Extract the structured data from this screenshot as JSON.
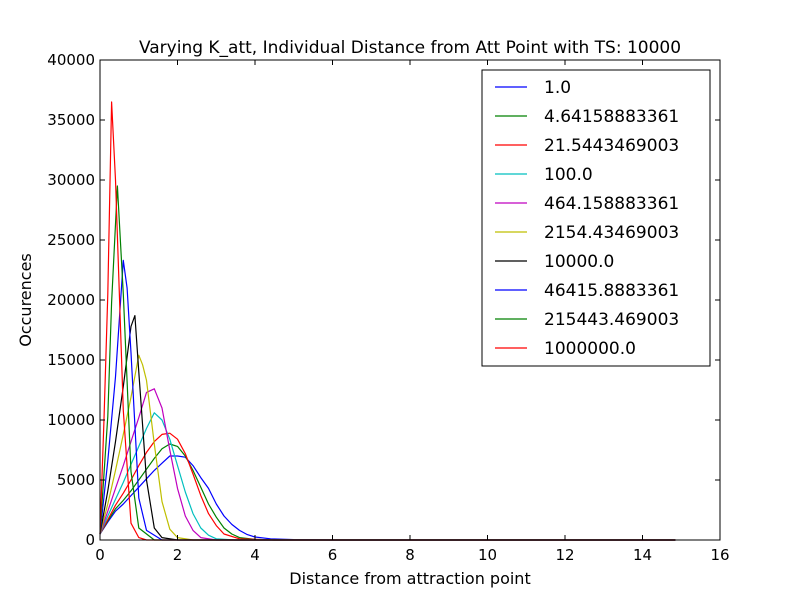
{
  "chart_data": {
    "type": "line",
    "title": "Varying K_att, Individual Distance from Att Point with TS: 10000",
    "xlabel": "Distance from attraction point",
    "ylabel": "Occurences",
    "xlim": [
      0,
      16
    ],
    "ylim": [
      0,
      40000
    ],
    "xticks": [
      "0",
      "2",
      "4",
      "6",
      "8",
      "10",
      "12",
      "14",
      "16"
    ],
    "yticks": [
      "0",
      "5000",
      "10000",
      "15000",
      "20000",
      "25000",
      "30000",
      "35000",
      "40000"
    ],
    "grid": false,
    "legend_position": "top-right",
    "series": [
      {
        "name": "1.0",
        "color": "#0000ff",
        "x": [
          0,
          0.2,
          0.4,
          0.6,
          0.8,
          1.0,
          1.2,
          1.4,
          1.6,
          1.8,
          2.0,
          2.2,
          2.4,
          2.6,
          2.8,
          3.0,
          3.2,
          3.4,
          3.6,
          3.8,
          4.0,
          4.4,
          5.0,
          6.0,
          8.0,
          10.0,
          12.0,
          14.85
        ],
        "y": [
          500,
          1500,
          2400,
          3000,
          3700,
          4400,
          5100,
          5800,
          6400,
          7000,
          7000,
          6900,
          6200,
          5200,
          4300,
          3000,
          2000,
          1300,
          800,
          450,
          250,
          100,
          30,
          0,
          0,
          0,
          0,
          0
        ]
      },
      {
        "name": "4.64158883361",
        "color": "#008000",
        "x": [
          0,
          0.2,
          0.4,
          0.6,
          0.8,
          1.0,
          1.2,
          1.4,
          1.6,
          1.8,
          2.0,
          2.2,
          2.4,
          2.6,
          2.8,
          3.0,
          3.2,
          3.4,
          3.6,
          4.0,
          4.5,
          6.0,
          14.85
        ],
        "y": [
          500,
          1600,
          2600,
          3300,
          4100,
          5000,
          5900,
          6800,
          7600,
          8000,
          7800,
          7000,
          5800,
          4400,
          3000,
          1900,
          1000,
          500,
          200,
          60,
          0,
          0,
          0
        ]
      },
      {
        "name": "21.5443469003",
        "color": "#ff0000",
        "x": [
          0,
          0.2,
          0.4,
          0.6,
          0.8,
          1.0,
          1.2,
          1.4,
          1.6,
          1.8,
          2.0,
          2.2,
          2.4,
          2.6,
          2.8,
          3.0,
          3.2,
          3.6,
          4.5,
          14.85
        ],
        "y": [
          500,
          1700,
          2900,
          3900,
          5000,
          6200,
          7300,
          8200,
          8800,
          8900,
          8400,
          7200,
          5500,
          3700,
          2200,
          1200,
          500,
          100,
          0,
          0
        ]
      },
      {
        "name": "100.0",
        "color": "#00bfbf",
        "x": [
          0,
          0.2,
          0.4,
          0.6,
          0.8,
          1.0,
          1.2,
          1.4,
          1.6,
          1.8,
          2.0,
          2.2,
          2.4,
          2.6,
          2.8,
          3.0,
          3.5,
          14.85
        ],
        "y": [
          500,
          2000,
          3400,
          4800,
          6300,
          7800,
          9300,
          10600,
          10000,
          8400,
          6200,
          4000,
          2200,
          1000,
          400,
          100,
          0,
          0
        ]
      },
      {
        "name": "464.158883361",
        "color": "#bf00bf",
        "x": [
          0,
          0.2,
          0.4,
          0.6,
          0.8,
          1.0,
          1.2,
          1.4,
          1.6,
          1.8,
          2.0,
          2.2,
          2.4,
          2.6,
          3.0,
          14.85
        ],
        "y": [
          500,
          2400,
          4300,
          6200,
          8200,
          10200,
          12300,
          12600,
          11000,
          7500,
          4300,
          2000,
          800,
          200,
          0,
          0
        ]
      },
      {
        "name": "2154.43469003",
        "color": "#bfbf00",
        "x": [
          0,
          0.2,
          0.4,
          0.6,
          0.8,
          1.0,
          1.1,
          1.2,
          1.4,
          1.6,
          1.8,
          2.0,
          2.4,
          14.85
        ],
        "y": [
          500,
          3000,
          5800,
          8800,
          11900,
          15400,
          14600,
          13300,
          8000,
          3200,
          900,
          200,
          0,
          0
        ]
      },
      {
        "name": "10000.0",
        "color": "#000000",
        "x": [
          0,
          0.2,
          0.4,
          0.6,
          0.8,
          0.9,
          1.0,
          1.2,
          1.4,
          1.6,
          2.0,
          14.85
        ],
        "y": [
          500,
          4100,
          8200,
          12800,
          17800,
          18700,
          14000,
          5000,
          1000,
          200,
          0,
          0
        ]
      },
      {
        "name": "46415.8883361",
        "color": "#0000ff",
        "x": [
          0,
          0.2,
          0.4,
          0.6,
          0.7,
          0.8,
          1.0,
          1.2,
          1.6,
          14.85
        ],
        "y": [
          500,
          6600,
          13600,
          23300,
          21000,
          15600,
          3500,
          800,
          0,
          0
        ]
      },
      {
        "name": "215443.469003",
        "color": "#008000",
        "x": [
          0,
          0.2,
          0.3,
          0.45,
          0.6,
          0.8,
          1.0,
          1.4,
          14.85
        ],
        "y": [
          500,
          10300,
          19800,
          29500,
          20500,
          5700,
          1000,
          0,
          0
        ]
      },
      {
        "name": "1000000.0",
        "color": "#ff0000",
        "x": [
          0,
          0.1,
          0.2,
          0.3,
          0.4,
          0.6,
          0.8,
          1.0,
          1.2,
          14.85
        ],
        "y": [
          500,
          9800,
          20500,
          36500,
          30000,
          10800,
          1400,
          200,
          0,
          0
        ]
      }
    ]
  }
}
